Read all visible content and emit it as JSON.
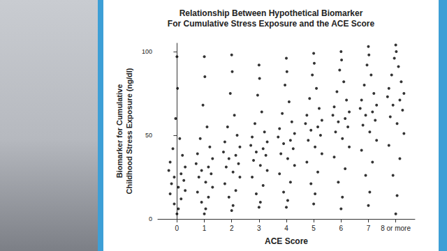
{
  "chart_data": {
    "type": "scatter",
    "title": "Relationship Between Hypothetical Biomarker\nFor Cumulative Stress Exposure and the ACE Score",
    "x_label": "ACE Score",
    "y_label": "Biomarker for Cumulative\nChildhood Stress Exposure (ng/dl)",
    "color": "#000000",
    "marker": "circle",
    "grid": false,
    "xlim": [
      -0.7,
      8.7
    ],
    "xticks": [
      0,
      1,
      2,
      3,
      4,
      5,
      6,
      7,
      {
        "value": 8,
        "label": "8 or more"
      }
    ],
    "ylim": [
      0,
      105
    ],
    "yticks": [
      0,
      50,
      100
    ],
    "x": [
      0.0,
      0.02,
      -0.05,
      0.1,
      -0.15,
      0.2,
      -0.25,
      0.3,
      -0.3,
      0.15,
      -0.1,
      0.25,
      -0.2,
      0.05,
      0.3,
      -0.25,
      0.15,
      -0.1,
      0.05,
      0.0,
      1.0,
      1.02,
      0.95,
      1.1,
      0.85,
      1.2,
      0.75,
      1.3,
      0.7,
      1.15,
      0.9,
      1.25,
      0.8,
      1.05,
      1.3,
      0.75,
      1.15,
      0.9,
      1.05,
      1.0,
      2.0,
      2.02,
      1.95,
      2.1,
      1.85,
      2.2,
      1.75,
      2.3,
      1.7,
      2.15,
      1.9,
      2.25,
      1.8,
      2.05,
      2.3,
      1.75,
      2.15,
      1.9,
      2.05,
      2.0,
      3.0,
      3.02,
      2.95,
      3.1,
      2.85,
      3.2,
      2.75,
      3.3,
      2.7,
      3.15,
      2.9,
      3.25,
      2.8,
      3.05,
      3.3,
      2.75,
      3.15,
      2.9,
      3.05,
      3.0,
      4.0,
      4.02,
      3.95,
      4.1,
      3.85,
      4.2,
      3.75,
      4.3,
      3.7,
      4.15,
      3.9,
      4.25,
      3.8,
      4.05,
      4.3,
      3.75,
      4.15,
      3.9,
      4.05,
      4.0,
      5.0,
      5.02,
      4.95,
      5.1,
      4.85,
      5.2,
      4.75,
      5.3,
      4.7,
      5.15,
      4.9,
      5.25,
      4.8,
      5.05,
      5.3,
      4.75,
      5.15,
      4.9,
      5.05,
      5.0,
      6.0,
      6.02,
      5.95,
      6.1,
      5.85,
      6.2,
      5.75,
      6.3,
      5.7,
      6.15,
      5.9,
      6.25,
      5.8,
      6.05,
      6.3,
      5.75,
      6.15,
      5.9,
      6.05,
      6.0,
      7.0,
      7.02,
      6.95,
      7.1,
      6.85,
      7.2,
      6.75,
      7.3,
      6.7,
      7.15,
      6.9,
      7.25,
      6.8,
      7.05,
      7.3,
      6.75,
      7.15,
      6.9,
      7.05,
      7.0,
      8.0,
      8.02,
      7.95,
      8.1,
      7.85,
      8.2,
      7.75,
      8.3,
      7.7,
      8.15,
      7.9,
      8.25,
      7.8,
      8.05,
      8.3,
      7.75,
      8.15,
      7.9,
      8.05,
      8.0
    ],
    "values": [
      97,
      78,
      60,
      48,
      42,
      38,
      34,
      31,
      29,
      27,
      25,
      23,
      21,
      19,
      17,
      15,
      12,
      9,
      6,
      3,
      97,
      85,
      68,
      55,
      48,
      43,
      39,
      36,
      33,
      31,
      29,
      27,
      25,
      22,
      19,
      16,
      13,
      10,
      6,
      3,
      98,
      88,
      75,
      62,
      55,
      50,
      46,
      43,
      40,
      38,
      36,
      33,
      31,
      28,
      25,
      21,
      17,
      13,
      8,
      5,
      92,
      84,
      74,
      64,
      57,
      52,
      49,
      46,
      44,
      42,
      40,
      38,
      35,
      32,
      29,
      25,
      20,
      15,
      10,
      7,
      96,
      88,
      80,
      70,
      63,
      58,
      54,
      51,
      49,
      47,
      45,
      42,
      39,
      36,
      32,
      27,
      22,
      16,
      11,
      7,
      99,
      93,
      86,
      78,
      72,
      66,
      62,
      59,
      57,
      55,
      53,
      50,
      47,
      43,
      39,
      34,
      28,
      21,
      15,
      9,
      100,
      95,
      89,
      82,
      76,
      71,
      67,
      64,
      62,
      60,
      58,
      55,
      52,
      48,
      43,
      37,
      30,
      22,
      13,
      6,
      103,
      98,
      92,
      86,
      80,
      75,
      71,
      68,
      66,
      64,
      62,
      59,
      56,
      52,
      47,
      41,
      34,
      26,
      16,
      8,
      104,
      100,
      96,
      91,
      86,
      82,
      78,
      75,
      73,
      71,
      68,
      65,
      61,
      57,
      51,
      44,
      36,
      26,
      14,
      3
    ]
  }
}
